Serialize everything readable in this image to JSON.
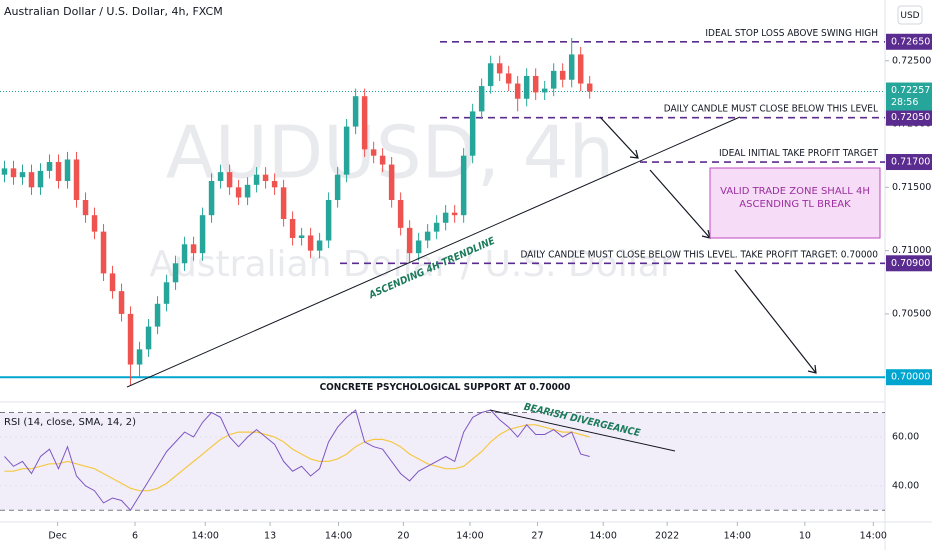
{
  "chart_data": {
    "type": "candlestick",
    "title": "Australian Dollar / U.S. Dollar, 4h, FXCM",
    "currency": "USD",
    "watermark": {
      "symbol": "AUDUSD, 4h",
      "name": "Australian Dollar / U.S. Dollar"
    },
    "up_color": "#26a69a",
    "down_color": "#ef5350",
    "xlim": [
      -0.5,
      97.8
    ],
    "xticks": [
      {
        "value": 5.9,
        "label": "Dec"
      },
      {
        "value": 14.5,
        "label": "6"
      },
      {
        "value": 22.3,
        "label": "14:00"
      },
      {
        "value": 29.5,
        "label": "13"
      },
      {
        "value": 37.1,
        "label": "14:00"
      },
      {
        "value": 44.3,
        "label": "20"
      },
      {
        "value": 51.7,
        "label": "14:00"
      },
      {
        "value": 59.2,
        "label": "27"
      },
      {
        "value": 66.5,
        "label": "14:00"
      },
      {
        "value": 73.6,
        "label": "2022"
      },
      {
        "value": 81.4,
        "label": "14:00"
      },
      {
        "value": 88.9,
        "label": "10"
      },
      {
        "value": 96.5,
        "label": "14:00"
      }
    ],
    "ylim": [
      0.6982,
      0.7298
    ],
    "yticks": [
      {
        "value": 0.725,
        "label": "0.72500"
      },
      {
        "value": 0.72,
        "label": "0.72000"
      },
      {
        "value": 0.715,
        "label": "0.71500"
      },
      {
        "value": 0.71,
        "label": "0.71000"
      },
      {
        "value": 0.705,
        "label": "0.70500"
      }
    ],
    "candles": {
      "open": [
        0.716,
        0.7165,
        0.7158,
        0.7162,
        0.715,
        0.7163,
        0.717,
        0.7155,
        0.7172,
        0.714,
        0.7128,
        0.7115,
        0.7082,
        0.7068,
        0.705,
        0.701,
        0.7022,
        0.704,
        0.7058,
        0.7075,
        0.709,
        0.7105,
        0.7098,
        0.7128,
        0.7155,
        0.7162,
        0.715,
        0.7142,
        0.7152,
        0.716,
        0.7155,
        0.715,
        0.7125,
        0.711,
        0.7112,
        0.71,
        0.7108,
        0.714,
        0.716,
        0.7198,
        0.7222,
        0.718,
        0.7175,
        0.7168,
        0.714,
        0.7118,
        0.7098,
        0.7108,
        0.7115,
        0.7122,
        0.713,
        0.7128,
        0.7175,
        0.721,
        0.723,
        0.7248,
        0.724,
        0.7232,
        0.722,
        0.7238,
        0.7225,
        0.7228,
        0.7242,
        0.7235,
        0.7255,
        0.7232
      ],
      "high": [
        0.7171,
        0.7171,
        0.7168,
        0.7168,
        0.7169,
        0.7176,
        0.7176,
        0.7178,
        0.7178,
        0.7146,
        0.7134,
        0.7121,
        0.7088,
        0.7074,
        0.7056,
        0.7028,
        0.7046,
        0.7064,
        0.7081,
        0.7096,
        0.7111,
        0.7111,
        0.7134,
        0.7161,
        0.7168,
        0.7168,
        0.7156,
        0.7158,
        0.7166,
        0.7166,
        0.7161,
        0.7156,
        0.7131,
        0.7118,
        0.7118,
        0.7114,
        0.7146,
        0.7166,
        0.7204,
        0.7228,
        0.7228,
        0.7186,
        0.7181,
        0.7174,
        0.7146,
        0.7124,
        0.7114,
        0.7121,
        0.7128,
        0.7136,
        0.7136,
        0.7181,
        0.7216,
        0.7236,
        0.7254,
        0.7254,
        0.7246,
        0.7238,
        0.7244,
        0.7244,
        0.7234,
        0.7248,
        0.7248,
        0.7268,
        0.7261,
        0.7238
      ],
      "low": [
        0.7154,
        0.7152,
        0.7152,
        0.7144,
        0.7144,
        0.7157,
        0.7149,
        0.7149,
        0.7134,
        0.7122,
        0.7109,
        0.7076,
        0.7062,
        0.7044,
        0.6993,
        0.7,
        0.7016,
        0.7034,
        0.7052,
        0.7069,
        0.7084,
        0.7092,
        0.7092,
        0.7122,
        0.7149,
        0.7144,
        0.7136,
        0.7136,
        0.7146,
        0.7149,
        0.7144,
        0.7119,
        0.7104,
        0.7104,
        0.7094,
        0.7094,
        0.7102,
        0.7134,
        0.7154,
        0.7192,
        0.7174,
        0.7169,
        0.7162,
        0.7134,
        0.7112,
        0.709,
        0.7092,
        0.7102,
        0.7109,
        0.7116,
        0.7122,
        0.7122,
        0.7169,
        0.7204,
        0.7224,
        0.7234,
        0.7226,
        0.721,
        0.7214,
        0.7219,
        0.7219,
        0.7222,
        0.7229,
        0.7229,
        0.7226,
        0.722
      ],
      "close": [
        0.7165,
        0.7158,
        0.7162,
        0.715,
        0.7163,
        0.717,
        0.7155,
        0.7172,
        0.714,
        0.7128,
        0.7115,
        0.7082,
        0.7068,
        0.705,
        0.701,
        0.7022,
        0.704,
        0.7058,
        0.7075,
        0.709,
        0.7105,
        0.7098,
        0.7128,
        0.7155,
        0.7162,
        0.715,
        0.7142,
        0.7152,
        0.716,
        0.7155,
        0.715,
        0.7125,
        0.711,
        0.7112,
        0.71,
        0.7108,
        0.714,
        0.716,
        0.7198,
        0.7222,
        0.718,
        0.7175,
        0.7168,
        0.714,
        0.7118,
        0.7098,
        0.7108,
        0.7115,
        0.7122,
        0.713,
        0.7128,
        0.7175,
        0.721,
        0.723,
        0.7248,
        0.724,
        0.7232,
        0.722,
        0.7238,
        0.7225,
        0.7228,
        0.7242,
        0.7235,
        0.7255,
        0.7232,
        0.72257
      ]
    },
    "current_price": {
      "price": {
        "value": 0.72257,
        "label": "0.72257"
      },
      "countdown": "28:56",
      "color": "#26a69a"
    },
    "levels": [
      {
        "label": "IDEAL STOP LOSS ABOVE SWING HIGH",
        "price": {
          "value": 0.7265,
          "label": "0.72650"
        },
        "color": "#5b2c8f"
      },
      {
        "label": "DAILY CANDLE MUST CLOSE BELOW THIS LEVEL",
        "price": {
          "value": 0.7205,
          "label": "0.72050"
        },
        "color": "#5b2c8f"
      },
      {
        "label": "IDEAL INITIAL TAKE PROFIT TARGET",
        "price": {
          "value": 0.717,
          "label": "0.71700"
        },
        "color": "#5b2c8f"
      },
      {
        "label": "DAILY CANDLE MUST CLOSE BELOW THIS LEVEL. TAKE PROFIT TARGET: 0.70000",
        "price": {
          "value": 0.709,
          "label": "0.70900"
        },
        "color": "#5b2c8f"
      },
      {
        "label": "CONCRETE PSYCHOLOGICAL SUPPORT AT 0.70000",
        "price": {
          "value": 0.7,
          "label": "0.70000"
        },
        "color": "#00a5cf"
      }
    ],
    "annotations": {
      "trendline": "ASCENDING 4H TRENDLINE",
      "zone": "VALID TRADE ZONE SHALL 4H ASCENDING TL BREAK",
      "divergence": "BEARISH DIVERGEANCE"
    },
    "rsi": {
      "title": "RSI (14, close, SMA, 14, 2)",
      "ylim": [
        26,
        73.5
      ],
      "yticks": [
        {
          "value": 60,
          "label": "60.00"
        },
        {
          "value": 40,
          "label": "40.00"
        }
      ],
      "band": [
        30,
        70
      ],
      "color": "#7e57c2",
      "sma_color": "#f5c842",
      "values": [
        52,
        48,
        50,
        45,
        52,
        55,
        47,
        56,
        44,
        40,
        38,
        33,
        35,
        34,
        30,
        36,
        42,
        48,
        54,
        58,
        62,
        60,
        66,
        70,
        68,
        60,
        56,
        60,
        63,
        60,
        57,
        50,
        46,
        48,
        44,
        47,
        58,
        64,
        68,
        71,
        58,
        56,
        55,
        50,
        45,
        42,
        46,
        48,
        50,
        52,
        50,
        62,
        68,
        70,
        71,
        67,
        64,
        60,
        65,
        61,
        61,
        63,
        60,
        62,
        53,
        52
      ],
      "sma": [
        46,
        46,
        47,
        47,
        48,
        49,
        49,
        50,
        49,
        48,
        47,
        45,
        43,
        41,
        39,
        38,
        38,
        39,
        41,
        44,
        47,
        50,
        53,
        56,
        59,
        61,
        62,
        62,
        62,
        61,
        60,
        58,
        55,
        53,
        51,
        50,
        50,
        51,
        53,
        56,
        58,
        59,
        59,
        58,
        56,
        53,
        51,
        49,
        48,
        47,
        47,
        48,
        51,
        54,
        58,
        61,
        63,
        64,
        65,
        65,
        64,
        63,
        62,
        62,
        61,
        60
      ]
    }
  }
}
